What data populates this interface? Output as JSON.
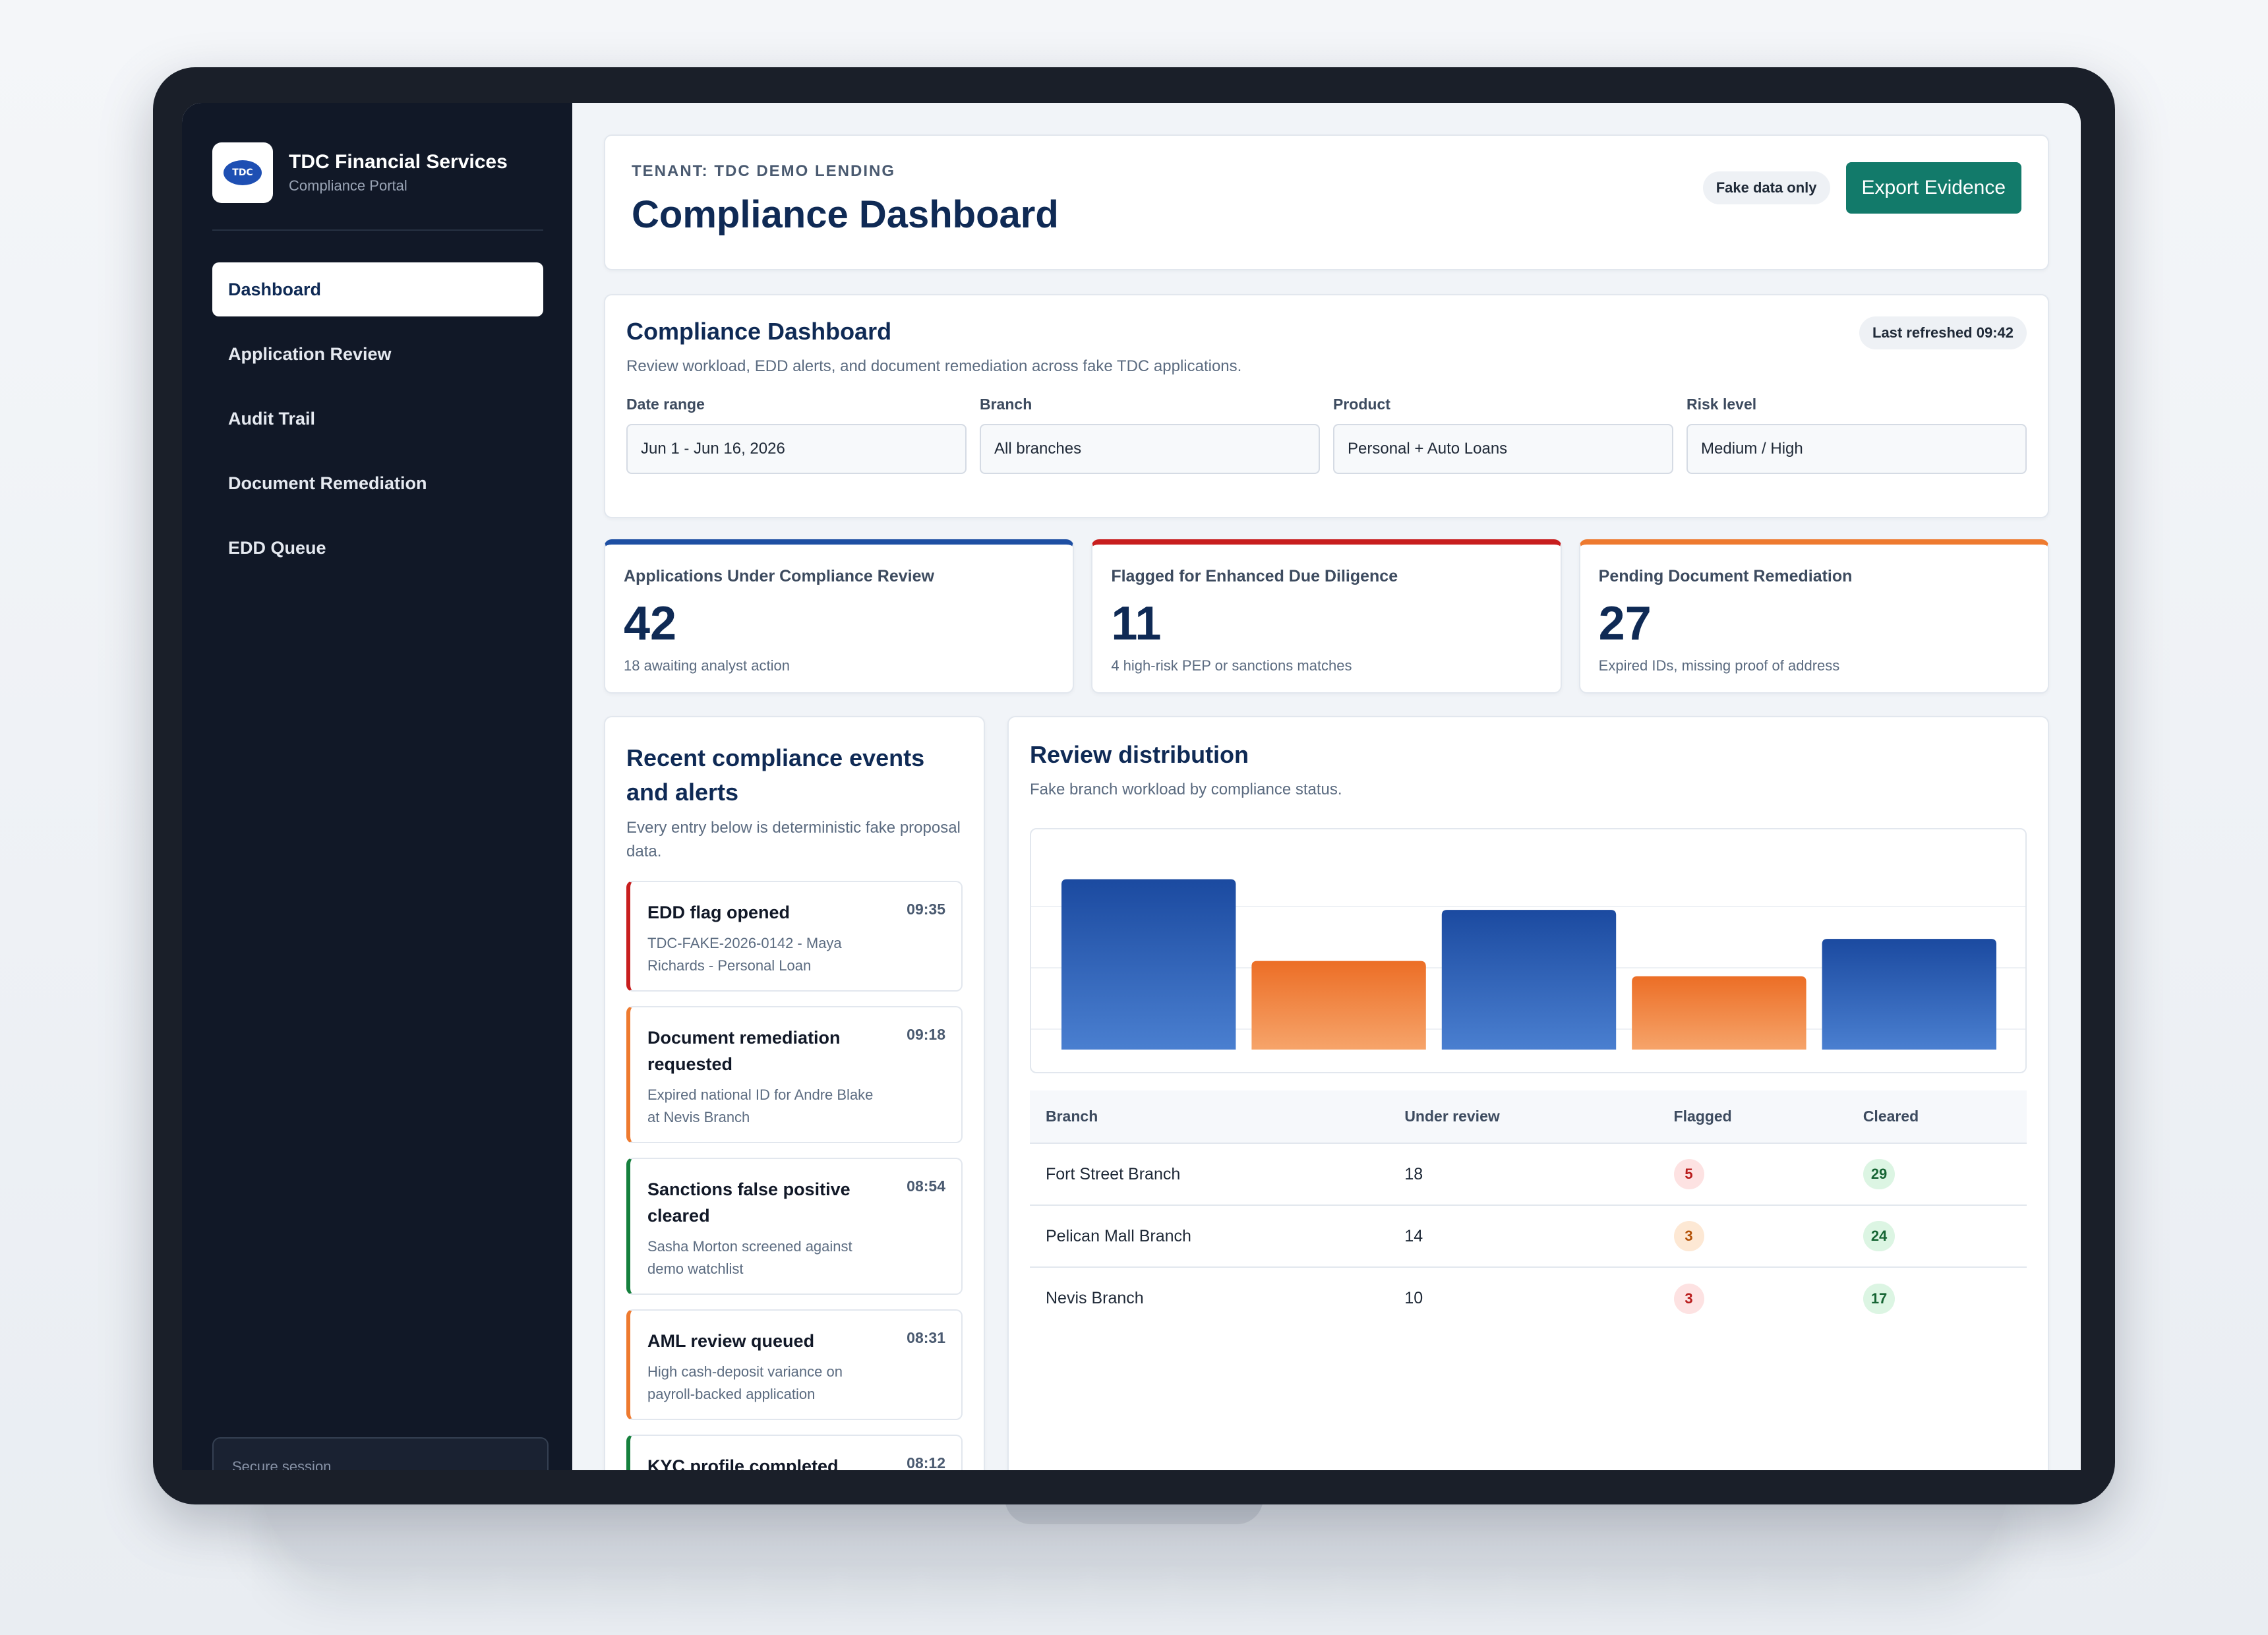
{
  "brand": {
    "name": "TDC Financial Services",
    "subtitle": "Compliance Portal",
    "logo_text": "TDC"
  },
  "sidebar": {
    "items": [
      {
        "label": "Dashboard",
        "active": true
      },
      {
        "label": "Application Review"
      },
      {
        "label": "Audit Trail"
      },
      {
        "label": "Document Remediation"
      },
      {
        "label": "EDD Queue"
      }
    ],
    "secure_session": "Secure session"
  },
  "header": {
    "tenant": "TENANT: TDC DEMO LENDING",
    "title": "Compliance Dashboard",
    "fake_badge": "Fake data only",
    "export_label": "Export Evidence"
  },
  "filters_panel": {
    "title": "Compliance Dashboard",
    "subtitle": "Review workload, EDD alerts, and document remediation across fake TDC applications.",
    "last_refreshed": "Last refreshed 09:42",
    "filters": [
      {
        "label": "Date range",
        "value": "Jun 1 - Jun 16, 2026"
      },
      {
        "label": "Branch",
        "value": "All branches"
      },
      {
        "label": "Product",
        "value": "Personal + Auto Loans"
      },
      {
        "label": "Risk level",
        "value": "Medium / High"
      }
    ]
  },
  "kpis": [
    {
      "label": "Applications Under Compliance Review",
      "value": "42",
      "note": "18 awaiting analyst action",
      "color": "#1e4fa3"
    },
    {
      "label": "Flagged for Enhanced Due Diligence",
      "value": "11",
      "note": "4 high-risk PEP or sanctions matches",
      "color": "#c81e1e"
    },
    {
      "label": "Pending Document Remediation",
      "value": "27",
      "note": "Expired IDs, missing proof of address",
      "color": "#ee7a2f"
    }
  ],
  "events": {
    "title": "Recent compliance events and alerts",
    "subtitle": "Every entry below is deterministic fake proposal data.",
    "items": [
      {
        "title": "EDD flag opened",
        "time": "09:35",
        "detail": "TDC-FAKE-2026-0142 - Maya Richards - Personal Loan",
        "color": "#c81e1e"
      },
      {
        "title": "Document remediation requested",
        "time": "09:18",
        "detail": "Expired national ID for Andre Blake at Nevis Branch",
        "color": "#ee7a2f"
      },
      {
        "title": "Sanctions false positive cleared",
        "time": "08:54",
        "detail": "Sasha Morton screened against demo watchlist",
        "color": "#15803d"
      },
      {
        "title": "AML review queued",
        "time": "08:31",
        "detail": "High cash-deposit variance on payroll-backed application",
        "color": "#ee7a2f"
      },
      {
        "title": "KYC profile completed",
        "time": "08:12",
        "detail": "",
        "color": "#15803d"
      }
    ]
  },
  "distribution": {
    "title": "Review distribution",
    "subtitle": "Fake branch workload by compliance status.",
    "table": {
      "headers": [
        "Branch",
        "Under review",
        "Flagged",
        "Cleared"
      ],
      "rows": [
        {
          "branch": "Fort Street Branch",
          "under_review": "18",
          "flagged": "5",
          "cleared": "29"
        },
        {
          "branch": "Pelican Mall Branch",
          "under_review": "14",
          "flagged": "3",
          "cleared": "24"
        },
        {
          "branch": "Nevis Branch",
          "under_review": "10",
          "flagged": "3",
          "cleared": "17"
        }
      ]
    }
  },
  "chart_data": {
    "type": "bar",
    "categories": [
      "",
      "",
      "",
      "",
      ""
    ],
    "values": [
      100,
      52,
      82,
      43,
      65
    ],
    "colors": [
      "#1e4fa3",
      "#ee7a2f",
      "#1e4fa3",
      "#ee7a2f",
      "#1e4fa3"
    ],
    "ylim": [
      0,
      120
    ],
    "grid": true
  }
}
